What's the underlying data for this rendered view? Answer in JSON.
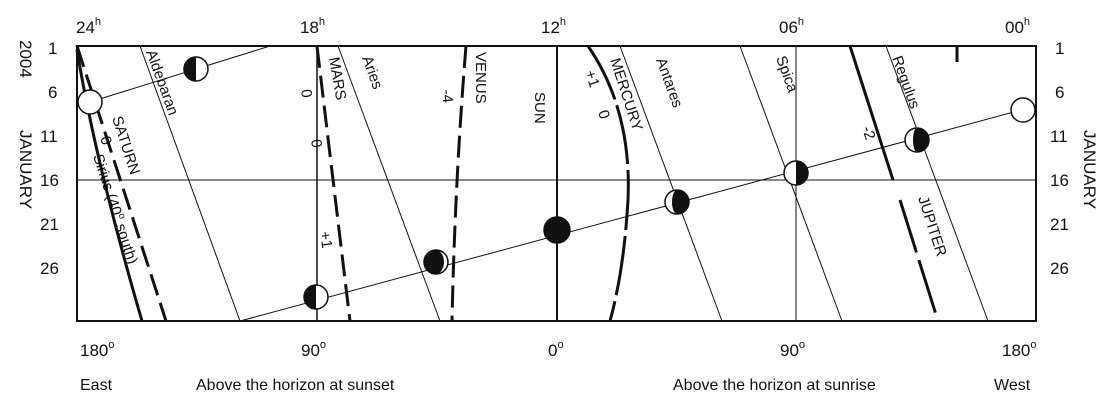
{
  "top_axis": {
    "labels": [
      {
        "hour": "24",
        "unit": "h"
      },
      {
        "hour": "18",
        "unit": "h"
      },
      {
        "hour": "12",
        "unit": "h"
      },
      {
        "hour": "06",
        "unit": "h"
      },
      {
        "hour": "00",
        "unit": "h"
      }
    ]
  },
  "bottom_axis": {
    "labels": [
      {
        "deg": "180",
        "unit": "o"
      },
      {
        "deg": "90",
        "unit": "o"
      },
      {
        "deg": "0",
        "unit": "o"
      },
      {
        "deg": "90",
        "unit": "o"
      },
      {
        "deg": "180",
        "unit": "o"
      }
    ]
  },
  "left_axis": {
    "year": "2004",
    "month": "JANUARY",
    "days": [
      "1",
      "6",
      "11",
      "16",
      "21",
      "26"
    ]
  },
  "right_axis": {
    "month": "JANUARY",
    "days": [
      "1",
      "6",
      "11",
      "16",
      "21",
      "26"
    ]
  },
  "footer": {
    "east": "East",
    "sunset": "Above the horizon at sunset",
    "sunrise": "Above the horizon at sunrise",
    "west": "West"
  },
  "stars": {
    "aldebaran": "Aldebaran",
    "aries": "Aries",
    "antares": "Antares",
    "spica": "Spica",
    "regulus": "Regulus",
    "sirius": "Sirius (40",
    "sirius_deg": "o",
    "sirius_end": " south)"
  },
  "planets": {
    "saturn": "SATURN",
    "mars": "MARS",
    "venus": "VENUS",
    "sun": "SUN",
    "mercury": "MERCURY",
    "jupiter": "JUPITER"
  },
  "magnitudes": {
    "saturn": "0",
    "mars_a": "0",
    "mars_b": "0",
    "mars_c": "+1",
    "venus": "-4",
    "mercury_a": "+1",
    "mercury_b": "0",
    "jupiter": "-2"
  }
}
